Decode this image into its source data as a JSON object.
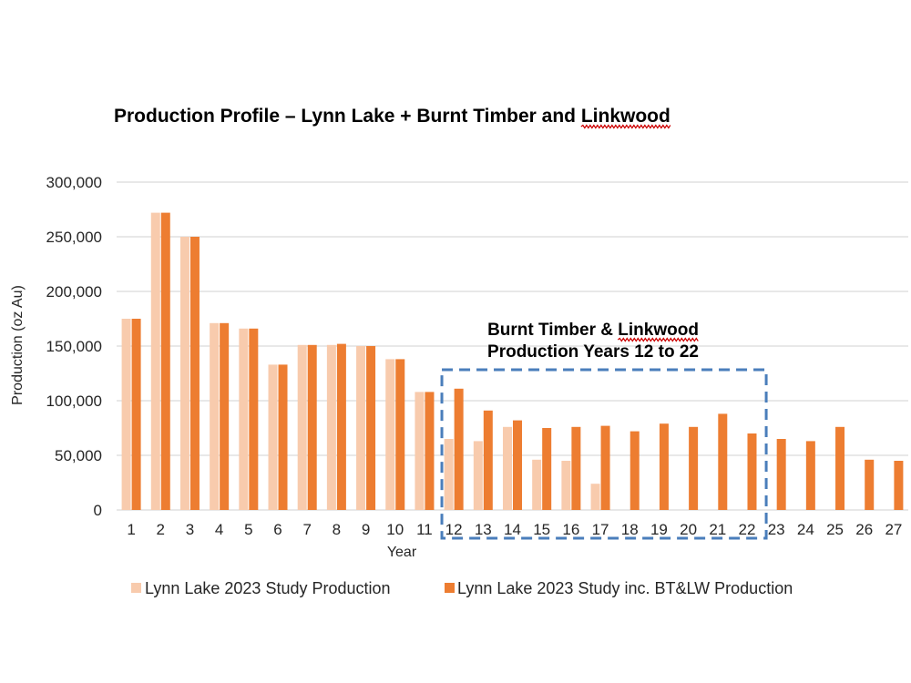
{
  "chart_data": {
    "type": "bar",
    "title": {
      "prefix": "Production Profile – Lynn Lake + Burnt Timber and ",
      "suffix": "Linkwood"
    },
    "xlabel": "Year",
    "ylabel": "Production (oz Au)",
    "ylim": [
      0,
      300000
    ],
    "yticks": [
      "0",
      "50,000",
      "100,000",
      "150,000",
      "200,000",
      "250,000",
      "300,000"
    ],
    "grid": true,
    "legend_position": "bottom",
    "categories": [
      "1",
      "2",
      "3",
      "4",
      "5",
      "6",
      "7",
      "8",
      "9",
      "10",
      "11",
      "12",
      "13",
      "14",
      "15",
      "16",
      "17",
      "18",
      "19",
      "20",
      "21",
      "22",
      "23",
      "24",
      "25",
      "26",
      "27"
    ],
    "series": [
      {
        "name": "Lynn Lake 2023 Study Production",
        "color": "#f8cbad",
        "values": [
          175000,
          272000,
          250000,
          171000,
          166000,
          133000,
          151000,
          151000,
          150000,
          138000,
          108000,
          65000,
          63000,
          76000,
          46000,
          45000,
          24000,
          0,
          0,
          0,
          0,
          0,
          0,
          0,
          0,
          0,
          0
        ]
      },
      {
        "name": "Lynn Lake 2023 Study inc. BT&LW Production",
        "color": "#ed7d31",
        "values": [
          175000,
          272000,
          250000,
          171000,
          166000,
          133000,
          151000,
          152000,
          150000,
          138000,
          108000,
          111000,
          91000,
          82000,
          75000,
          76000,
          77000,
          72000,
          79000,
          76000,
          88000,
          70000,
          65000,
          63000,
          76000,
          46000,
          45000
        ]
      }
    ],
    "annotation": {
      "line1_prefix": "Burnt Timber & ",
      "line1_suffix": "Linkwood",
      "line2": "Production Years 12 to 22",
      "box_color": "#4a7ebb",
      "box_from_year": "12",
      "box_to_year": "22"
    }
  }
}
